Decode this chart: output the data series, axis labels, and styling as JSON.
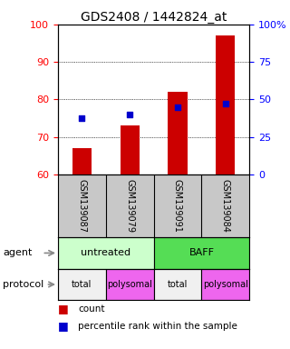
{
  "title": "GDS2408 / 1442824_at",
  "samples": [
    "GSM139087",
    "GSM139079",
    "GSM139091",
    "GSM139084"
  ],
  "bar_values": [
    67,
    73,
    82,
    97
  ],
  "percentile_values": [
    75,
    76,
    78,
    79
  ],
  "ylim": [
    60,
    100
  ],
  "yticks": [
    60,
    70,
    80,
    90,
    100
  ],
  "right_ytick_vals": [
    0,
    25,
    50,
    75,
    100
  ],
  "bar_color": "#cc0000",
  "percentile_color": "#0000cc",
  "bar_width": 0.4,
  "agent_labels": [
    "untreated",
    "BAFF"
  ],
  "agent_colors": [
    "#ccffcc",
    "#55dd55"
  ],
  "protocol_labels": [
    "total",
    "polysomal",
    "total",
    "polysomal"
  ],
  "protocol_colors": [
    "#f0f0f0",
    "#ee66ee",
    "#f0f0f0",
    "#ee66ee"
  ],
  "legend_count_label": "count",
  "legend_pct_label": "percentile rank within the sample",
  "agent_row_label": "agent",
  "protocol_row_label": "protocol",
  "title_fontsize": 10,
  "tick_fontsize": 8,
  "gsm_fontsize": 7,
  "label_fontsize": 8,
  "legend_fontsize": 7.5,
  "gsm_bg": "#c8c8c8"
}
